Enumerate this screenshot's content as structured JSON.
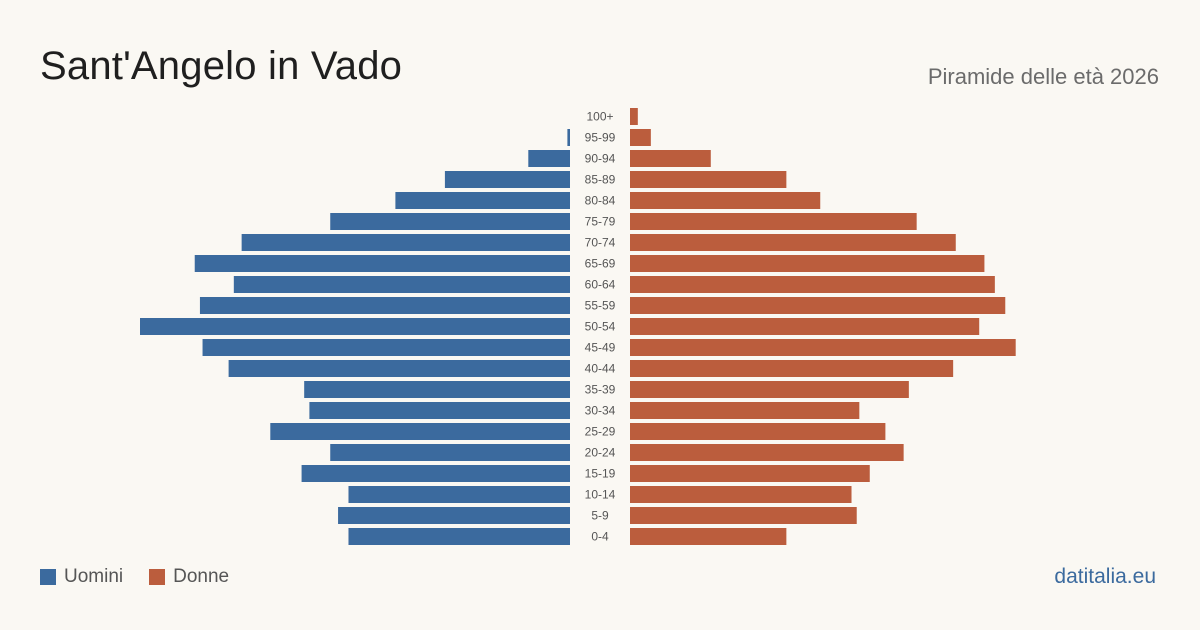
{
  "header": {
    "title": "Sant'Angelo in Vado",
    "subtitle": "Piramide delle età 2026"
  },
  "legend": {
    "men_label": "Uomini",
    "women_label": "Donne"
  },
  "source": "datitalia.eu",
  "colors": {
    "men": "#3b6a9e",
    "women": "#bb5d3d",
    "tick_text": "#555555"
  },
  "chart_data": {
    "type": "bar",
    "orientation": "horizontal-pyramid",
    "categories": [
      "100+",
      "95-99",
      "90-94",
      "85-89",
      "80-84",
      "75-79",
      "70-74",
      "65-69",
      "60-64",
      "55-59",
      "50-54",
      "45-49",
      "40-44",
      "35-39",
      "30-34",
      "25-29",
      "20-24",
      "15-19",
      "10-14",
      "5-9",
      "0-4"
    ],
    "series": [
      {
        "name": "Uomini",
        "values": [
          0,
          1,
          16,
          48,
          67,
          92,
          126,
          144,
          129,
          142,
          165,
          141,
          131,
          102,
          100,
          115,
          92,
          103,
          85,
          89,
          85
        ]
      },
      {
        "name": "Donne",
        "values": [
          3,
          8,
          31,
          60,
          73,
          110,
          125,
          136,
          140,
          144,
          134,
          148,
          124,
          107,
          88,
          98,
          105,
          92,
          85,
          87,
          60
        ]
      }
    ],
    "legend_position": "bottom-left",
    "grid": false
  }
}
